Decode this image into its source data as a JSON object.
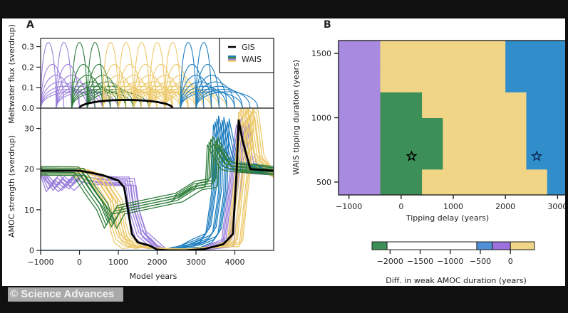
{
  "credit": "© Science Advances",
  "chart_data": [
    {
      "panel": "A",
      "type": "line",
      "title": "Meltwater flux",
      "xlabel": "",
      "ylabel": "Meltwater flux (sverdrup)",
      "xlim": [
        -1000,
        5000
      ],
      "ylim": [
        0,
        0.34
      ],
      "yticks": [
        0.0,
        0.1,
        0.2,
        0.3
      ],
      "ytick_labels": [
        "0.0",
        "0.1",
        "0.2",
        "0.3"
      ],
      "legend": {
        "position": "top-right",
        "entries": [
          "GIS",
          "WAIS"
        ]
      },
      "series": [
        {
          "name": "GIS",
          "color": "#000000",
          "shape": "arc",
          "start": 0,
          "end": 2400,
          "peak": 0.04
        },
        {
          "name": "WAIS (purple)",
          "color": "#9b7fdc",
          "starts": [
            -1000,
            -600
          ],
          "peak_max": 0.32,
          "durations": [
            400,
            600,
            800,
            1000,
            1200,
            1400,
            1600
          ]
        },
        {
          "name": "WAIS (green)",
          "color": "#2e7d3a",
          "starts": [
            -200,
            200
          ],
          "peak_max": 0.32,
          "durations": [
            400,
            600,
            800,
            1000,
            1200,
            1400,
            1600
          ]
        },
        {
          "name": "WAIS (yellow)",
          "color": "#ecc96a",
          "starts": [
            600,
            1000,
            1400,
            1800,
            2200
          ],
          "peak_max": 0.32,
          "durations": [
            400,
            600,
            800,
            1000,
            1200,
            1400,
            1600
          ]
        },
        {
          "name": "WAIS (blue)",
          "color": "#1f7fc0",
          "starts": [
            2600,
            3000
          ],
          "peak_max": 0.32,
          "durations": [
            400,
            600,
            800,
            1000,
            1200,
            1400,
            1600
          ]
        }
      ]
    },
    {
      "panel": "A",
      "type": "line",
      "xlabel": "Model years",
      "ylabel": "AMOC strength (sverdrup)",
      "xlim": [
        -1000,
        5000
      ],
      "ylim": [
        0,
        35
      ],
      "xticks": [
        -1000,
        0,
        1000,
        2000,
        3000,
        4000
      ],
      "xtick_labels": [
        "−1000",
        "0",
        "1000",
        "2000",
        "3000",
        "4000"
      ],
      "yticks": [
        0,
        10,
        20,
        30
      ],
      "ytick_labels": [
        "0",
        "10",
        "20",
        "30"
      ],
      "series": [
        {
          "name": "GIS only",
          "color": "#000000",
          "x": [
            -1000,
            0,
            200,
            600,
            1000,
            1150,
            1250,
            1350,
            1500,
            1800,
            2000,
            2300,
            2700,
            3200,
            3700,
            3950,
            4050,
            4100,
            4200,
            4400,
            5000
          ],
          "y": [
            19.6,
            19.6,
            19.3,
            18.5,
            17.2,
            15.5,
            10,
            4,
            2,
            1.2,
            0.2,
            0,
            0,
            0.3,
            1.5,
            4,
            20,
            32,
            27,
            20,
            19.6
          ]
        },
        {
          "name": "purple runs",
          "color": "#9b7fdc",
          "count": 8,
          "x": [
            -1000,
            -700,
            -500,
            -300,
            0,
            400,
            1000,
            1300,
            1400,
            1600,
            1900,
            2100,
            2300,
            3000,
            3800,
            4100,
            4200,
            4450,
            5000
          ],
          "y": [
            19.6,
            15.5,
            17.5,
            15.8,
            18.5,
            17.5,
            17,
            17,
            10,
            4,
            1.5,
            0.5,
            0,
            0,
            2,
            25,
            32,
            20,
            19.6
          ]
        },
        {
          "name": "green runs",
          "color": "#2e7d3a",
          "count": 8,
          "x": [
            -1000,
            0,
            300,
            600,
            800,
            1000,
            1500,
            2000,
            2500,
            3000,
            3350,
            3400,
            3450,
            3550,
            3800,
            4000,
            5000
          ],
          "y": [
            19.6,
            19.5,
            15,
            11,
            6.5,
            10,
            11,
            12,
            13,
            16,
            16.5,
            17,
            27,
            25,
            21,
            20.5,
            19.6
          ]
        },
        {
          "name": "yellow runs",
          "color": "#ecc96a",
          "count": 10,
          "x": [
            -1000,
            0,
            500,
            900,
            1000,
            1100,
            1300,
            1600,
            2000,
            2500,
            3000,
            3500,
            4000,
            4200,
            4300,
            4400,
            4550,
            5000
          ],
          "y": [
            19.6,
            19.5,
            18,
            12,
            6,
            3,
            1.5,
            0.8,
            0.5,
            0.4,
            0.4,
            0.8,
            2,
            20,
            35,
            34,
            23,
            19
          ]
        },
        {
          "name": "blue runs",
          "color": "#1f7fc0",
          "count": 10,
          "x": [
            -1000,
            2300,
            2600,
            3000,
            3300,
            3450,
            3600,
            3650,
            3800,
            3900,
            4000,
            5000
          ],
          "y": [
            0,
            0,
            0.8,
            1.8,
            3,
            5,
            15,
            32,
            25,
            22,
            21,
            19.6
          ]
        }
      ]
    },
    {
      "panel": "B",
      "type": "heatmap",
      "xlabel": "Tipping delay (years)",
      "ylabel": "WAIS tipping duration (years)",
      "xlim": [
        -1200,
        3200
      ],
      "ylim": [
        400,
        1600
      ],
      "xticks": [
        -1000,
        0,
        1000,
        2000,
        3000
      ],
      "xtick_labels": [
        "−1000",
        "0",
        "1000",
        "2000",
        "3000"
      ],
      "yticks": [
        500,
        1000,
        1500
      ],
      "ytick_labels": [
        "500",
        "1000",
        "1500"
      ],
      "x_bins": [
        -1200,
        -800,
        -400,
        0,
        400,
        800,
        1200,
        1600,
        2000,
        2400,
        2800,
        3200
      ],
      "y_bins": [
        400,
        600,
        800,
        1000,
        1200,
        1400,
        1600
      ],
      "category_colors": {
        "G": "#3d8f58",
        "B": "#318ecb",
        "P": "#a98ae1",
        "Y": "#f1d587"
      },
      "grid_rows_bottom_to_top": [
        "PPGGYYYYYYB",
        "PPGGGYYYYBB",
        "PPGGGYYYYBB",
        "PPGGYYYYYBB",
        "PPYYYYYYBBB",
        "PPYYYYYYBBB"
      ],
      "markers": [
        {
          "shape": "star",
          "x": 200,
          "y": 700,
          "color": "#000000"
        },
        {
          "shape": "star",
          "x": 2600,
          "y": 700,
          "color": "#0d2a52"
        }
      ],
      "colorbar": {
        "label": "Diff. in weak AMOC duration (years)",
        "range": [
          -2300,
          400
        ],
        "ticks": [
          -2000,
          -1500,
          -1000,
          -500,
          0
        ],
        "tick_labels": [
          "−2000",
          "−1500",
          "−1000",
          "−500",
          "0"
        ],
        "segments": [
          {
            "from": -2300,
            "to": -2050,
            "color": "#3d8f58"
          },
          {
            "from": -2050,
            "to": -560,
            "color": "#ffffff"
          },
          {
            "from": -560,
            "to": -300,
            "color": "#4f8fd6"
          },
          {
            "from": -300,
            "to": 0,
            "color": "#9b72dd"
          },
          {
            "from": 0,
            "to": 400,
            "color": "#f1d587"
          }
        ]
      }
    }
  ]
}
